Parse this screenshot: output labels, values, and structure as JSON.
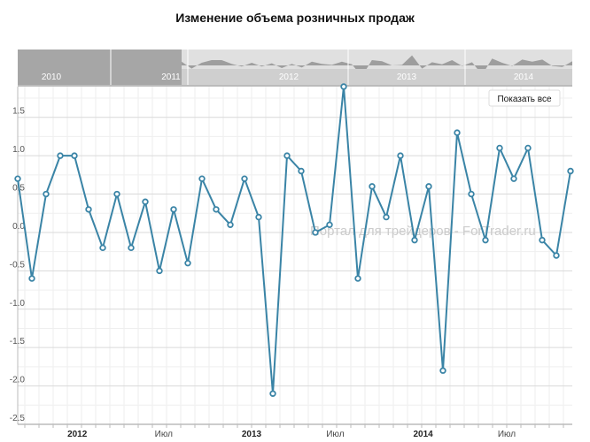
{
  "chart_data": {
    "type": "line",
    "title": "Изменение объема розничных продаж",
    "series": [
      {
        "color": "#3a84a6",
        "values": [
          0.7,
          -0.6,
          0.5,
          1.0,
          1.0,
          0.3,
          -0.2,
          0.5,
          -0.2,
          0.4,
          -0.5,
          0.3,
          -0.4,
          0.7,
          0.3,
          0.1,
          0.7,
          0.2,
          -2.1,
          1.0,
          0.8,
          0.0,
          0.1,
          1.9,
          -0.6,
          0.6,
          0.2,
          1.0,
          -0.1,
          0.6,
          -1.8,
          1.3,
          0.5,
          -0.1,
          1.1,
          0.7,
          1.1,
          -0.1,
          -0.3,
          0.8
        ]
      }
    ],
    "y_ticks": [
      "1.5",
      "1.0",
      "0.5",
      "0.0",
      "-0.5",
      "-1.0",
      "-1.5",
      "-2.0",
      "-2.5"
    ],
    "y_tick_values": [
      1.5,
      1.0,
      0.5,
      0.0,
      -0.5,
      -1.0,
      -1.5,
      -2.0,
      -2.5
    ],
    "ylim": [
      -2.5,
      1.9
    ],
    "x_labels": [
      {
        "label": "2012",
        "index": 4.2,
        "bold": true
      },
      {
        "label": "Июл",
        "index": 10.3,
        "bold": false
      },
      {
        "label": "2013",
        "index": 16.5,
        "bold": true
      },
      {
        "label": "Июл",
        "index": 22.4,
        "bold": false
      },
      {
        "label": "2014",
        "index": 28.6,
        "bold": true
      },
      {
        "label": "Июл",
        "index": 34.5,
        "bold": false
      }
    ],
    "grid": true,
    "navigator": {
      "years": [
        "2010",
        "2011",
        "2012",
        "2013",
        "2014"
      ],
      "selected_range": [
        "2012",
        "2014"
      ]
    },
    "button_label": "Показать все",
    "watermark": "Портал для трейдеров - ForTrader.ru"
  }
}
